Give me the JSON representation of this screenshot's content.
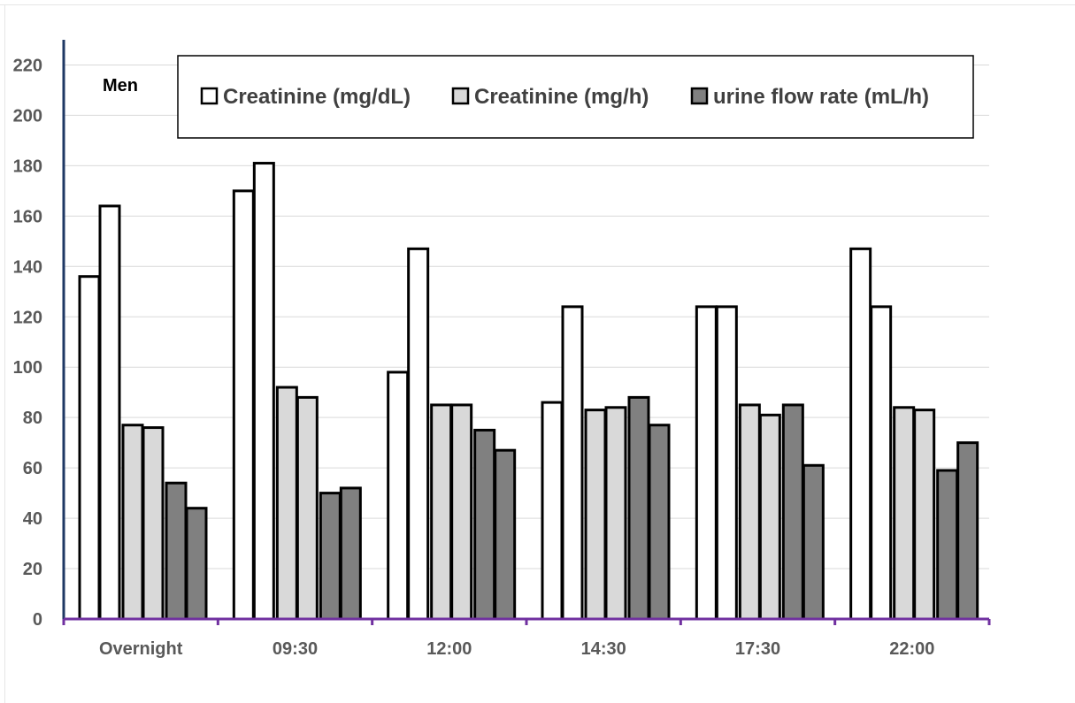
{
  "chart_data": {
    "type": "bar",
    "group_label": "Men",
    "categories": [
      "Overnight",
      "09:30",
      "12:00",
      "14:30",
      "17:30",
      "22:00"
    ],
    "series": [
      {
        "name": "Creatinine (mg/dL)",
        "color": "#ffffff",
        "values": [
          [
            136,
            164
          ],
          [
            170,
            181
          ],
          [
            98,
            147
          ],
          [
            86,
            124
          ],
          [
            124,
            124
          ],
          [
            147,
            124
          ]
        ]
      },
      {
        "name": "Creatinine (mg/h)",
        "color": "#d9d9d9",
        "values": [
          [
            77,
            76
          ],
          [
            92,
            88
          ],
          [
            85,
            85
          ],
          [
            83,
            84
          ],
          [
            85,
            81
          ],
          [
            84,
            83
          ]
        ]
      },
      {
        "name": "urine flow rate (mL/h)",
        "color": "#808080",
        "values": [
          [
            54,
            44
          ],
          [
            50,
            52
          ],
          [
            75,
            67
          ],
          [
            88,
            77
          ],
          [
            85,
            61
          ],
          [
            59,
            70
          ]
        ]
      }
    ],
    "yticks": [
      0,
      20,
      40,
      60,
      80,
      100,
      120,
      140,
      160,
      180,
      200,
      220
    ],
    "ylim": [
      0,
      230
    ],
    "grid": true,
    "legend_position": "top"
  }
}
